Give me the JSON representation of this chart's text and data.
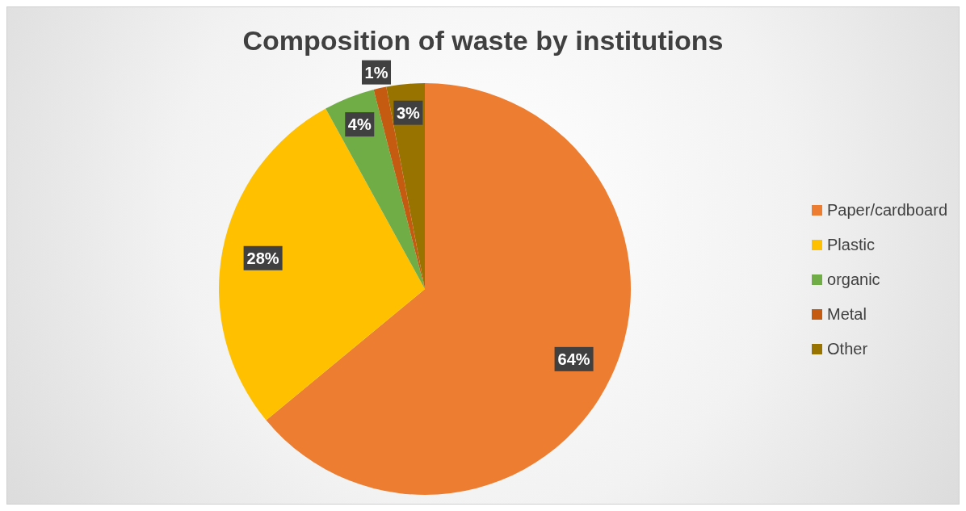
{
  "chart_data": {
    "type": "pie",
    "title": "Composition of waste by institutions",
    "categories": [
      "Paper/cardboard",
      "Plastic",
      "organic",
      "Metal",
      "Other"
    ],
    "values": [
      64,
      28,
      4,
      1,
      3
    ],
    "colors": [
      "#ed7d31",
      "#ffc000",
      "#70ad47",
      "#c55a11",
      "#997300"
    ],
    "value_labels": [
      "64%",
      "28%",
      "4%",
      "1%",
      "3%"
    ],
    "legend": "right"
  }
}
